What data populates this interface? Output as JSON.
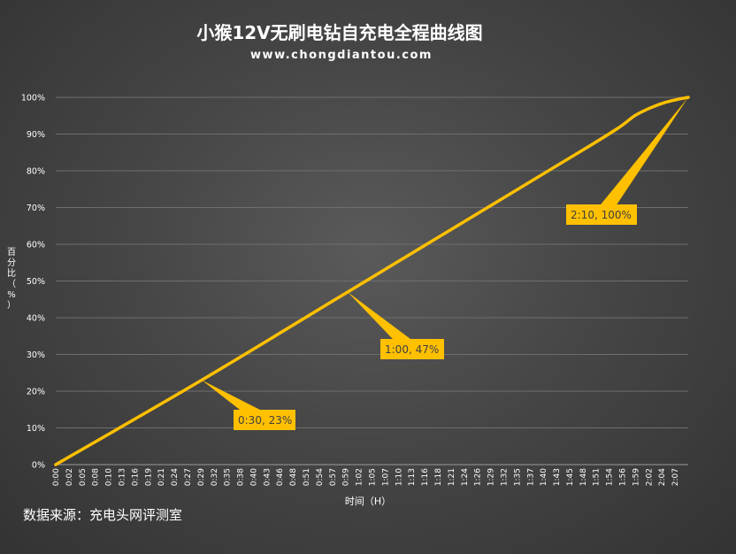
{
  "chart_data": {
    "type": "line",
    "title": "小猴12V无刷电钻自充电全程曲线图",
    "subtitle": "www.chongdiantou.com",
    "xlabel": "时间（H）",
    "ylabel": "百分比（%）",
    "ylim": [
      0,
      100
    ],
    "yticks": [
      "0%",
      "10%",
      "20%",
      "30%",
      "40%",
      "50%",
      "60%",
      "70%",
      "80%",
      "90%",
      "100%"
    ],
    "xticks": [
      "0:00",
      "0:02",
      "0:05",
      "0:08",
      "0:10",
      "0:13",
      "0:16",
      "0:19",
      "0:21",
      "0:24",
      "0:27",
      "0:29",
      "0:32",
      "0:35",
      "0:38",
      "0:40",
      "0:43",
      "0:46",
      "0:48",
      "0:51",
      "0:54",
      "0:57",
      "0:59",
      "1:02",
      "1:05",
      "1:07",
      "1:10",
      "1:13",
      "1:16",
      "1:18",
      "1:21",
      "1:24",
      "1:26",
      "1:29",
      "1:32",
      "1:35",
      "1:37",
      "1:40",
      "1:43",
      "1:45",
      "1:48",
      "1:51",
      "1:54",
      "1:56",
      "1:59",
      "2:02",
      "2:04",
      "2:07"
    ],
    "grid": true,
    "legend": "none",
    "line_color": "#ffc000",
    "series": [
      {
        "x_minutes": [
          0,
          30,
          60,
          90,
          110,
          116,
          119,
          122,
          125,
          128,
          130
        ],
        "values": [
          0,
          23,
          47,
          71,
          87,
          92,
          95,
          97,
          98.5,
          99.5,
          100
        ]
      }
    ],
    "annotations": [
      {
        "label": "0:30, 23%",
        "x_minutes": 30,
        "y": 23
      },
      {
        "label": "1:00, 47%",
        "x_minutes": 60,
        "y": 47
      },
      {
        "label": "2:10, 100%",
        "x_minutes": 130,
        "y": 100
      }
    ]
  },
  "source_text": "数据来源：充电头网评测室"
}
